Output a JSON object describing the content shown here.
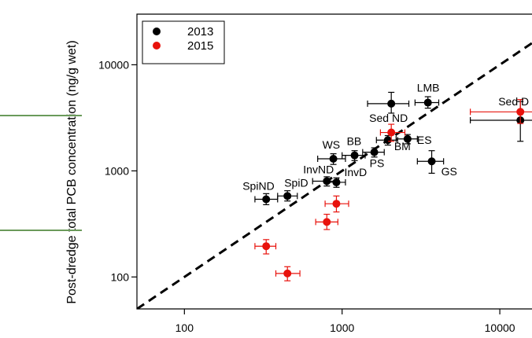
{
  "chart_data": {
    "type": "scatter",
    "title": "",
    "xlabel": "",
    "ylabel": "Post-dredge total PCB concentration (ng/g wet)",
    "x_scale": "log",
    "y_scale": "log",
    "xlim": [
      50,
      16000
    ],
    "ylim": [
      50,
      30000
    ],
    "x_ticks": [
      {
        "value": 100,
        "label": "100"
      },
      {
        "value": 1000,
        "label": "1000"
      },
      {
        "value": 10000,
        "label": "10000"
      }
    ],
    "y_ticks": [
      {
        "value": 100,
        "label": "100"
      },
      {
        "value": 1000,
        "label": "1000"
      },
      {
        "value": 10000,
        "label": "10000"
      }
    ],
    "reference_line": {
      "type": "1:1",
      "style": "dashed",
      "color": "#000000"
    },
    "legend": {
      "position": "top-left",
      "entries": [
        "2013",
        "2015"
      ]
    },
    "series": [
      {
        "name": "2013",
        "color": "#000000",
        "points": [
          {
            "label": "SpiND",
            "x": 330,
            "y": 540,
            "xerr": [
              280,
              390
            ],
            "yerr": [
              480,
              610
            ]
          },
          {
            "label": "SpiD",
            "x": 450,
            "y": 580,
            "xerr": [
              390,
              520
            ],
            "yerr": [
              520,
              650
            ]
          },
          {
            "label": "InvND",
            "x": 800,
            "y": 800,
            "xerr": [
              650,
              950
            ],
            "yerr": [
              720,
              880
            ]
          },
          {
            "label": "InvD",
            "x": 920,
            "y": 780,
            "xerr": [
              800,
              1050
            ],
            "yerr": [
              700,
              860
            ]
          },
          {
            "label": "WS",
            "x": 880,
            "y": 1300,
            "xerr": [
              700,
              1050
            ],
            "yerr": [
              1150,
              1450
            ]
          },
          {
            "label": "BB",
            "x": 1200,
            "y": 1400,
            "xerr": [
              1000,
              1400
            ],
            "yerr": [
              1250,
              1550
            ]
          },
          {
            "label": "PS",
            "x": 1600,
            "y": 1500,
            "xerr": [
              1350,
              1850
            ],
            "yerr": [
              1350,
              1650
            ]
          },
          {
            "label": "BM",
            "x": 1950,
            "y": 1950,
            "xerr": [
              1650,
              2250
            ],
            "yerr": [
              1750,
              2150
            ]
          },
          {
            "label": "ES",
            "x": 2600,
            "y": 2000,
            "xerr": [
              2200,
              3000
            ],
            "yerr": [
              1800,
              2200
            ]
          },
          {
            "label": "Sed ND",
            "x": 2050,
            "y": 4300,
            "xerr": [
              1450,
              2650
            ],
            "yerr": [
              3500,
              5500
            ]
          },
          {
            "label": "LMB",
            "x": 3500,
            "y": 4400,
            "xerr": [
              2900,
              4100
            ],
            "yerr": [
              3900,
              5000
            ]
          },
          {
            "label": "GS",
            "x": 3700,
            "y": 1230,
            "xerr": [
              3000,
              4400
            ],
            "yerr": [
              950,
              1550
            ]
          },
          {
            "label": "Sed D",
            "x": 13500,
            "y": 3000,
            "xerr": [
              6500,
              20000
            ],
            "yerr": [
              1900,
              4500
            ]
          }
        ]
      },
      {
        "name": "2015",
        "color": "#e8120c",
        "points": [
          {
            "x": 330,
            "y": 195,
            "xerr": [
              280,
              380
            ],
            "yerr": [
              165,
              225
            ]
          },
          {
            "x": 450,
            "y": 108,
            "xerr": [
              380,
              540
            ],
            "yerr": [
              92,
              125
            ]
          },
          {
            "x": 800,
            "y": 330,
            "xerr": [
              680,
              940
            ],
            "yerr": [
              280,
              390
            ]
          },
          {
            "x": 920,
            "y": 490,
            "xerr": [
              780,
              1100
            ],
            "yerr": [
              410,
              580
            ]
          },
          {
            "x": 2050,
            "y": 2300,
            "xerr": [
              1750,
              2500
            ],
            "yerr": [
              1900,
              2750
            ]
          },
          {
            "x": 13500,
            "y": 3600,
            "xerr": [
              6500,
              20000
            ],
            "yerr": [
              2800,
              4700
            ]
          }
        ]
      }
    ],
    "point_labels": [
      {
        "text": "SpiND",
        "anchor": "SpiND",
        "dx": -30,
        "dy": -12
      },
      {
        "text": "SpiD",
        "anchor": "SpiD",
        "dx": -4,
        "dy": -12
      },
      {
        "text": "InvND",
        "anchor": "InvND",
        "dx": -30,
        "dy": -10
      },
      {
        "text": "InvD",
        "anchor": "InvD",
        "dx": 10,
        "dy": -8
      },
      {
        "text": "WS",
        "anchor": "WS",
        "dx": -14,
        "dy": -13
      },
      {
        "text": "BB",
        "anchor": "BB",
        "dx": -10,
        "dy": -13
      },
      {
        "text": "PS",
        "anchor": "PS",
        "dx": -6,
        "dy": 19
      },
      {
        "text": "BM",
        "anchor": "BM",
        "dx": 8,
        "dy": 13
      },
      {
        "text": "ES",
        "anchor": "ES",
        "dx": 12,
        "dy": 6
      },
      {
        "text": "Sed ND",
        "anchor": "Sed ND",
        "dx": -28,
        "dy": 23
      },
      {
        "text": "LMB",
        "anchor": "LMB",
        "dx": -14,
        "dy": -14
      },
      {
        "text": "GS",
        "anchor": "GS",
        "dx": 12,
        "dy": 18
      },
      {
        "text": "Sed D",
        "anchor": "Sed D",
        "dx": -28,
        "dy": -19
      }
    ]
  }
}
